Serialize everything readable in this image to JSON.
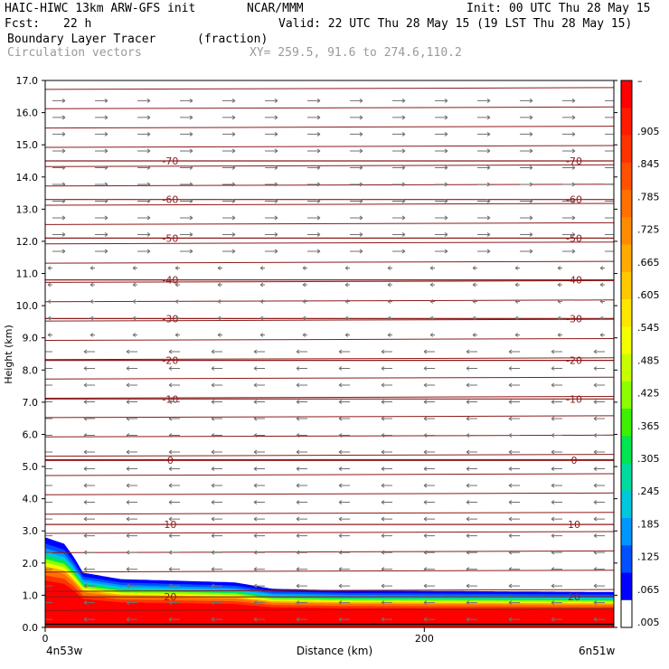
{
  "header": {
    "model": "HAIC-HIWC 13km ARW-GFS init",
    "org": "NCAR/MMM",
    "init": "Init: 00 UTC Thu 28 May 15",
    "fcst_label": "Fcst:",
    "fcst_value": "22 h",
    "valid": "Valid: 22 UTC Thu 28 May 15 (19 LST Thu 28 May 15)",
    "field": "Boundary Layer Tracer",
    "units": "(fraction)",
    "vectors": "Circulation vectors",
    "xy": "XY= 259.5, 91.6 to 274.6,110.2"
  },
  "chart_data": {
    "type": "heatmap",
    "xlabel": "Distance (km)",
    "ylabel": "Height (km)",
    "xlim": [
      0,
      300
    ],
    "ylim": [
      0,
      17
    ],
    "x_ticks": [
      {
        "value": 0,
        "label": "0"
      },
      {
        "value": 200,
        "label": "200"
      }
    ],
    "y_ticks": [
      "0.0",
      "1.0",
      "2.0",
      "3.0",
      "4.0",
      "5.0",
      "6.0",
      "7.0",
      "8.0",
      "9.0",
      "10.0",
      "11.0",
      "12.0",
      "13.0",
      "14.0",
      "15.0",
      "16.0",
      "17.0"
    ],
    "x_endpoints": {
      "left": "4n53w",
      "right": "6n51w"
    },
    "colorbar": {
      "labels": [
        "–",
        ".905",
        ".845",
        ".785",
        ".725",
        ".665",
        ".605",
        ".545",
        ".485",
        ".425",
        ".365",
        ".305",
        ".245",
        ".185",
        ".125",
        ".065",
        ".005"
      ],
      "colors": [
        "#ff0000",
        "#ff1a00",
        "#ff3300",
        "#ff5200",
        "#ff7000",
        "#ff8c00",
        "#ffaa00",
        "#ffc800",
        "#ffe600",
        "#f5ff00",
        "#c8ff00",
        "#8cff00",
        "#3cf000",
        "#00e650",
        "#00dca0",
        "#00c8dc",
        "#0096ff",
        "#0050ff",
        "#0000ff",
        "#ffffff"
      ]
    },
    "temperature_contours": [
      {
        "label": "-70",
        "height": 14.5
      },
      {
        "label": "-60",
        "height": 13.3
      },
      {
        "label": "-50",
        "height": 12.1
      },
      {
        "label": "-40",
        "height": 10.8
      },
      {
        "label": "-30",
        "height": 9.6
      },
      {
        "label": "-20",
        "height": 8.3
      },
      {
        "label": "-10",
        "height": 7.1
      },
      {
        "label": "0",
        "height": 5.2
      },
      {
        "label": "10",
        "height": 3.2
      },
      {
        "label": "20",
        "height": 0.95
      }
    ],
    "tracer_boundary": [
      {
        "x": 0,
        "z": 2.8
      },
      {
        "x": 10,
        "z": 2.6
      },
      {
        "x": 15,
        "z": 2.2
      },
      {
        "x": 20,
        "z": 1.7
      },
      {
        "x": 40,
        "z": 1.5
      },
      {
        "x": 100,
        "z": 1.4
      },
      {
        "x": 120,
        "z": 1.2
      },
      {
        "x": 160,
        "z": 1.15
      },
      {
        "x": 300,
        "z": 1.1
      }
    ]
  }
}
